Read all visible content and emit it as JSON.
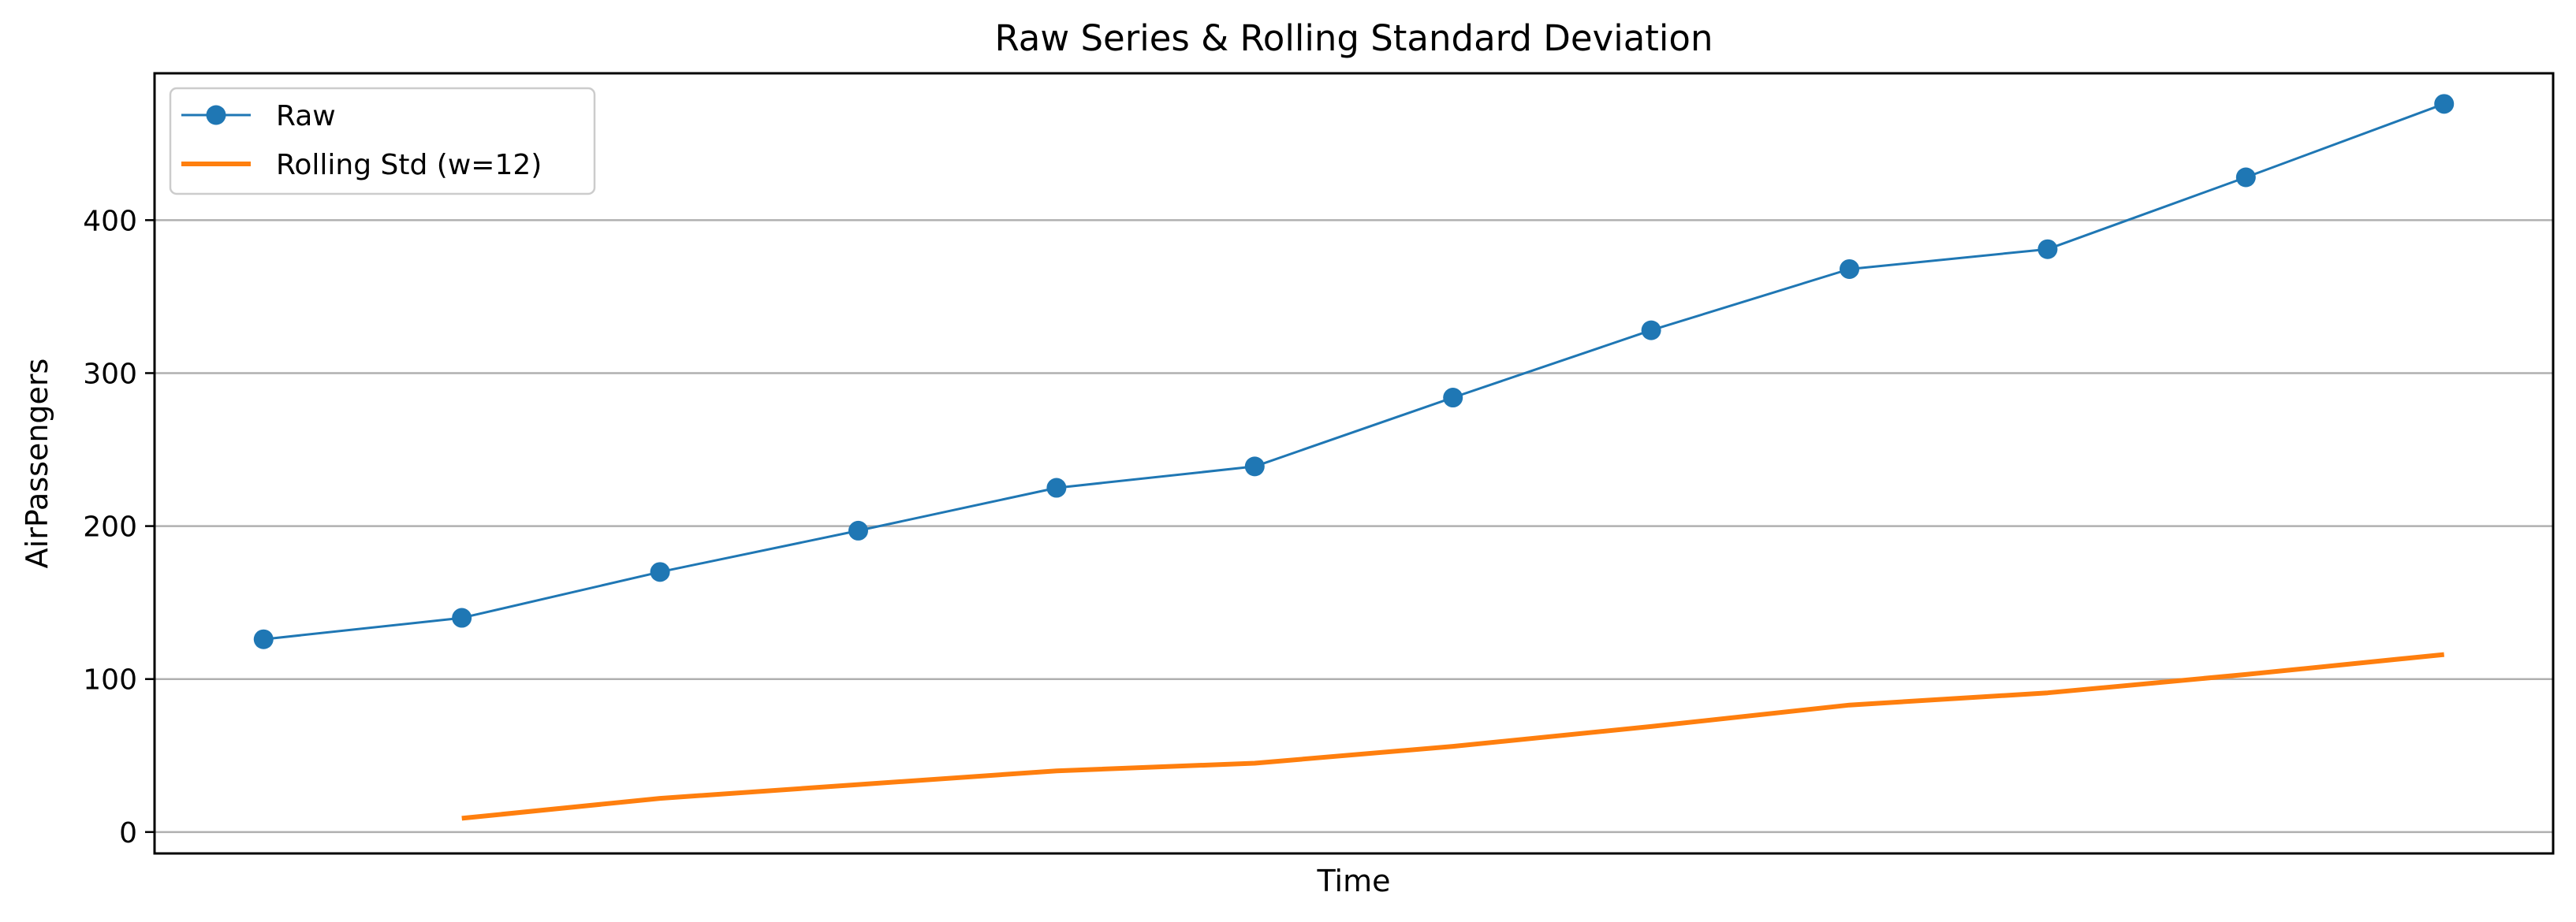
{
  "chart_data": {
    "type": "line",
    "title": "Raw Series & Rolling Standard Deviation",
    "xlabel": "Time",
    "ylabel": "AirPassengers",
    "x": [
      1,
      2,
      3,
      4,
      5,
      6,
      7,
      8,
      9,
      10,
      11,
      12
    ],
    "xlim": [
      0.45,
      12.55
    ],
    "ylim": [
      -14,
      496
    ],
    "yticks": [
      0,
      100,
      200,
      300,
      400
    ],
    "grid": "y",
    "legend_position": "upper-left",
    "series": [
      {
        "name": "Raw",
        "style": "line-markers",
        "color": "#1f77b4",
        "values": [
          126,
          140,
          170,
          197,
          225,
          239,
          284,
          328,
          368,
          381,
          428,
          476
        ]
      },
      {
        "name": "Rolling Std (w=12)",
        "style": "line",
        "color": "#ff7f0e",
        "values": [
          null,
          9,
          22,
          31,
          40,
          45,
          56,
          69,
          83,
          91,
          103,
          116
        ]
      }
    ]
  }
}
